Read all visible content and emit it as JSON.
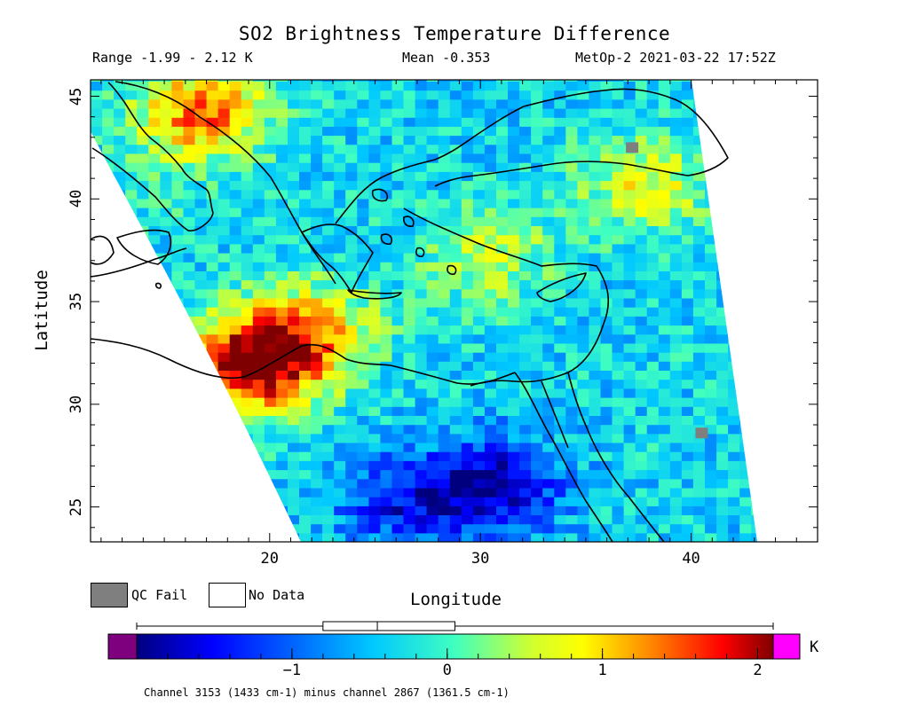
{
  "header": {
    "title": "SO2 Brightness Temperature Difference",
    "range": "Range -1.99 - 2.12 K",
    "mean": "Mean -0.353",
    "satellite_time": "MetOp-2 2021-03-22 17:52Z"
  },
  "axes": {
    "xlabel": "Longitude",
    "ylabel": "Latitude",
    "xticks": [
      {
        "value": 20,
        "label": "20"
      },
      {
        "value": 30,
        "label": "30"
      },
      {
        "value": 40,
        "label": "40"
      }
    ],
    "yticks": [
      {
        "value": 25,
        "label": "25"
      },
      {
        "value": 30,
        "label": "30"
      },
      {
        "value": 35,
        "label": "35"
      },
      {
        "value": 40,
        "label": "40"
      },
      {
        "value": 45,
        "label": "45"
      }
    ],
    "xlim": [
      11.5,
      46
    ],
    "ylim": [
      23.3,
      45.8
    ]
  },
  "legend": {
    "qc_fail": "QC Fail",
    "no_data": "No Data",
    "qc_color": "#7f7f7f",
    "no_data_color": "#ffffff"
  },
  "colorbar": {
    "unit": "K",
    "ticks": [
      {
        "value": -1,
        "label": "−1"
      },
      {
        "value": 0,
        "label": "0"
      },
      {
        "value": 1,
        "label": "1"
      },
      {
        "value": 2,
        "label": "2"
      }
    ],
    "range": [
      -2,
      2.1
    ],
    "underflow_color": "#7f007f",
    "overflow_color": "#ff00ff",
    "colors": [
      "#00007f",
      "#0000ff",
      "#0080ff",
      "#00ffff",
      "#80ff80",
      "#ffff00",
      "#ff8000",
      "#ff0000",
      "#7f0000"
    ],
    "boxplot": {
      "min": -2.0,
      "q1": -0.8,
      "median": -0.45,
      "q3": 0.05,
      "max": 2.1
    }
  },
  "footnote": "Channel 3153 (1433 cm-1) minus channel 2867 (1361.5 cm-1)",
  "map_data": {
    "type": "heatmap",
    "mean": -0.353,
    "value_range": [
      -1.99,
      2.12
    ],
    "hotspots": [
      {
        "lon": 18.8,
        "lat": 31.6,
        "value": 2.0
      },
      {
        "lon": 16.5,
        "lat": 44.0,
        "value": 1.4
      },
      {
        "lon": 21.5,
        "lat": 33.3,
        "value": 1.1
      },
      {
        "lon": 30.0,
        "lat": 37.0,
        "value": 0.5
      },
      {
        "lon": 37.5,
        "lat": 40.5,
        "value": 0.7
      },
      {
        "lon": 30.5,
        "lat": 25.8,
        "value": -1.8
      },
      {
        "lon": 26.0,
        "lat": 25.0,
        "value": -1.4
      },
      {
        "lon": 14.0,
        "lat": 40.0,
        "value": -0.2
      }
    ],
    "qc_fail_points": [
      {
        "lon": 40.5,
        "lat": 28.6
      },
      {
        "lon": 37.2,
        "lat": 42.5
      }
    ]
  }
}
